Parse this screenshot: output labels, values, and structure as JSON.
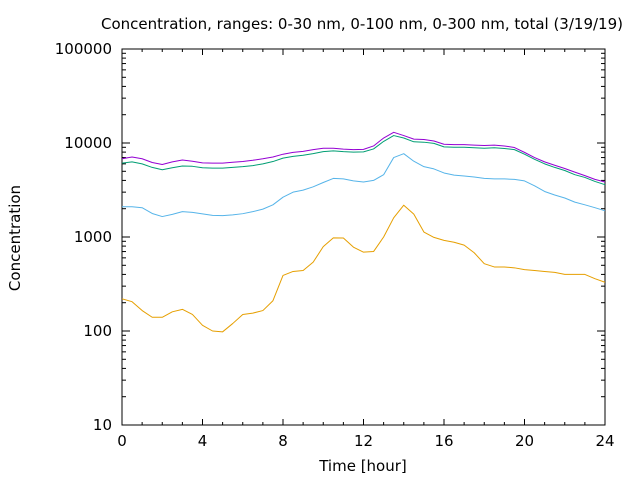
{
  "chart_data": {
    "type": "line",
    "title": "Concentration, ranges: 0-30 nm, 0-100 nm, 0-300 nm, total (3/19/19)",
    "xlabel": "Time [hour]",
    "ylabel": "Concentration",
    "xlim": [
      0,
      24
    ],
    "ylim": [
      10,
      100000
    ],
    "yscale": "log",
    "grid": false,
    "x_ticks": [
      0,
      4,
      8,
      12,
      16,
      20,
      24
    ],
    "x_tick_labels": [
      "0",
      "4",
      "8",
      "12",
      "16",
      "20",
      "24"
    ],
    "y_ticks": [
      10,
      100,
      1000,
      10000,
      100000
    ],
    "y_tick_labels": [
      "10",
      "100",
      "1000",
      "10000",
      "100000"
    ],
    "x": [
      0,
      0.5,
      1,
      1.5,
      2,
      2.5,
      3,
      3.5,
      4,
      4.5,
      5,
      5.5,
      6,
      6.5,
      7,
      7.5,
      8,
      8.5,
      9,
      9.5,
      10,
      10.5,
      11,
      11.5,
      12,
      12.5,
      13,
      13.5,
      14,
      14.5,
      15,
      15.5,
      16,
      16.5,
      17,
      17.5,
      18,
      18.5,
      19,
      19.5,
      20,
      20.5,
      21,
      21.5,
      22,
      22.5,
      23,
      23.5,
      24
    ],
    "series": [
      {
        "color": "#e69f00",
        "values": [
          220,
          205,
          165,
          140,
          140,
          160,
          170,
          150,
          115,
          100,
          98,
          120,
          150,
          155,
          165,
          210,
          390,
          430,
          440,
          540,
          790,
          980,
          975,
          780,
          690,
          700,
          1000,
          1600,
          2180,
          1750,
          1130,
          990,
          920,
          880,
          820,
          680,
          520,
          480,
          480,
          470,
          450,
          440,
          430,
          420,
          400,
          400,
          400,
          360,
          330
        ]
      },
      {
        "color": "#56b4e9",
        "values": [
          2100,
          2100,
          2050,
          1780,
          1650,
          1740,
          1860,
          1830,
          1760,
          1700,
          1690,
          1720,
          1770,
          1860,
          1980,
          2200,
          2650,
          3000,
          3150,
          3420,
          3800,
          4200,
          4150,
          3950,
          3850,
          4000,
          4600,
          7000,
          7700,
          6400,
          5600,
          5300,
          4800,
          4550,
          4450,
          4350,
          4200,
          4150,
          4150,
          4100,
          3950,
          3500,
          3050,
          2800,
          2600,
          2350,
          2200,
          2050,
          1900
        ]
      },
      {
        "color": "#009e73",
        "values": [
          6100,
          6300,
          6000,
          5500,
          5200,
          5450,
          5700,
          5650,
          5450,
          5400,
          5400,
          5500,
          5600,
          5750,
          6000,
          6350,
          6900,
          7200,
          7400,
          7700,
          8100,
          8250,
          8100,
          8000,
          8050,
          8650,
          10400,
          12000,
          11300,
          10300,
          10200,
          9900,
          9100,
          9000,
          9000,
          8900,
          8800,
          8900,
          8750,
          8500,
          7600,
          6700,
          6000,
          5500,
          5100,
          4600,
          4300,
          3900,
          3600
        ]
      },
      {
        "color": "#9400d3",
        "values": [
          6800,
          7100,
          6800,
          6200,
          5900,
          6300,
          6600,
          6400,
          6150,
          6100,
          6100,
          6250,
          6350,
          6550,
          6800,
          7100,
          7600,
          7950,
          8150,
          8500,
          8800,
          8800,
          8600,
          8500,
          8550,
          9300,
          11300,
          13000,
          12000,
          11000,
          10900,
          10500,
          9700,
          9600,
          9600,
          9500,
          9400,
          9500,
          9300,
          8950,
          7950,
          7000,
          6300,
          5800,
          5350,
          4900,
          4500,
          4100,
          3850
        ]
      }
    ]
  }
}
